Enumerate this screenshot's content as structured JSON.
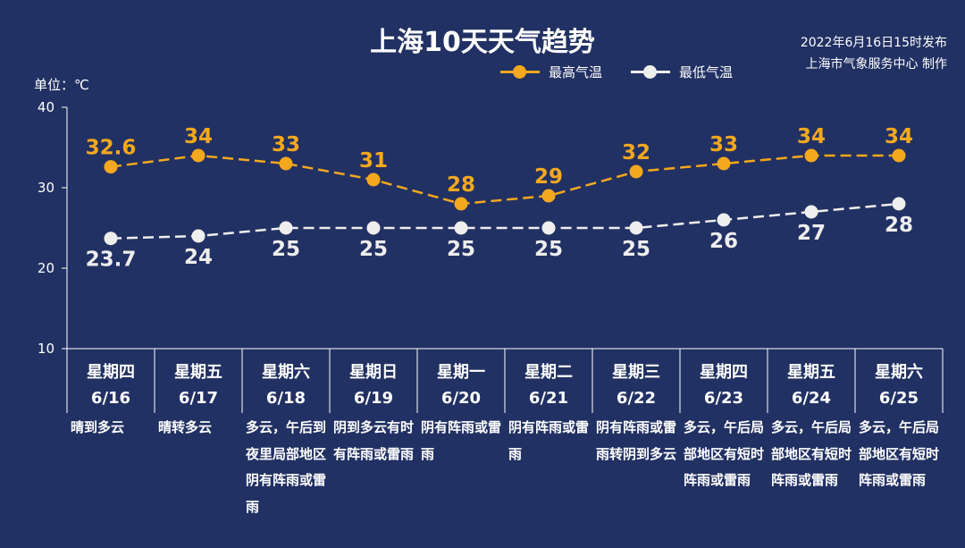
{
  "title": "上海10天天气趋势",
  "publish": {
    "line1": "2022年6月16日15时发布",
    "line2": "上海市气象服务中心 制作"
  },
  "unit_label": "单位：℃",
  "colors": {
    "background": "#223163",
    "high": "#f4a81d",
    "low": "#eeeeee",
    "axis": "#ffffff"
  },
  "chart_data": {
    "type": "line",
    "ylim": [
      10,
      40
    ],
    "yticks": [
      10,
      20,
      30,
      40
    ],
    "categories": [
      "6/16",
      "6/17",
      "6/18",
      "6/19",
      "6/20",
      "6/21",
      "6/22",
      "6/23",
      "6/24",
      "6/25"
    ],
    "series": [
      {
        "name": "最高气温",
        "values": [
          32.6,
          34,
          33,
          31,
          28,
          29,
          32,
          33,
          34,
          34
        ],
        "labels": [
          "32.6",
          "34",
          "33",
          "31",
          "28",
          "29",
          "32",
          "33",
          "34",
          "34"
        ]
      },
      {
        "name": "最低气温",
        "values": [
          23.7,
          24,
          25,
          25,
          25,
          25,
          25,
          26,
          27,
          28
        ],
        "labels": [
          "23.7",
          "24",
          "25",
          "25",
          "25",
          "25",
          "25",
          "26",
          "27",
          "28"
        ]
      }
    ],
    "weekdays": [
      "星期四",
      "星期五",
      "星期六",
      "星期日",
      "星期一",
      "星期二",
      "星期三",
      "星期四",
      "星期五",
      "星期六"
    ],
    "weather": [
      "晴到多云",
      "晴转多云",
      "多云，午后到夜里局部地区阴有阵雨或雷雨",
      "阴到多云有时有阵雨或雷雨",
      "阴有阵雨或雷雨",
      "阴有阵雨或雷雨",
      "阴有阵雨或雷雨转阴到多云",
      "多云，午后局部地区有短时阵雨或雷雨",
      "多云，午后局部地区有短时阵雨或雷雨",
      "多云，午后局部地区有短时阵雨或雷雨"
    ]
  }
}
